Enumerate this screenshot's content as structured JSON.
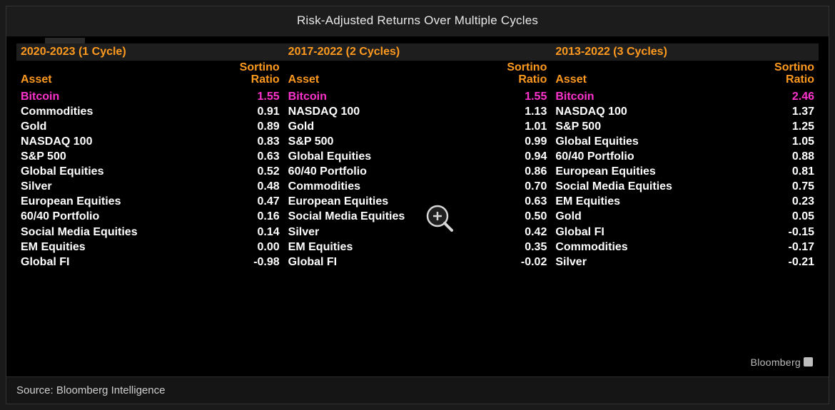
{
  "title": "Risk-Adjusted Returns Over Multiple Cycles",
  "source": "Source: Bloomberg Intelligence",
  "brand": "Bloomberg",
  "colors": {
    "accent_orange": "#ff9a1f",
    "highlight_magenta": "#ff33cc",
    "text_white": "#ffffff",
    "background": "#000000",
    "panel_header_bg": "#1e1e1e",
    "outer_bg": "#1a1a1a",
    "source_text": "#cfcfcf",
    "brand_gray": "#bdbdbd"
  },
  "typography": {
    "family": "Verdana",
    "title_fontsize": 17,
    "header_fontsize": 16,
    "row_fontsize": 16,
    "row_weight": 700
  },
  "column_headers": {
    "asset": "Asset",
    "ratio_line1": "Sortino",
    "ratio_line2": "Ratio"
  },
  "panels": [
    {
      "cycle_label": "2020-2023 (1 Cycle)",
      "rows": [
        {
          "asset": "Bitcoin",
          "ratio": "1.55",
          "highlight": true
        },
        {
          "asset": "Commodities",
          "ratio": "0.91"
        },
        {
          "asset": "Gold",
          "ratio": "0.89"
        },
        {
          "asset": "NASDAQ 100",
          "ratio": "0.83"
        },
        {
          "asset": "S&P 500",
          "ratio": "0.63"
        },
        {
          "asset": "Global Equities",
          "ratio": "0.52"
        },
        {
          "asset": "Silver",
          "ratio": "0.48"
        },
        {
          "asset": "European Equities",
          "ratio": "0.47"
        },
        {
          "asset": "60/40 Portfolio",
          "ratio": "0.16"
        },
        {
          "asset": "Social Media Equities",
          "ratio": "0.14"
        },
        {
          "asset": "EM Equities",
          "ratio": "0.00"
        },
        {
          "asset": "Global FI",
          "ratio": "-0.98"
        }
      ]
    },
    {
      "cycle_label": "2017-2022 (2 Cycles)",
      "rows": [
        {
          "asset": "Bitcoin",
          "ratio": "1.55",
          "highlight": true
        },
        {
          "asset": "NASDAQ 100",
          "ratio": "1.13"
        },
        {
          "asset": "Gold",
          "ratio": "1.01"
        },
        {
          "asset": "S&P 500",
          "ratio": "0.99"
        },
        {
          "asset": "Global Equities",
          "ratio": "0.94"
        },
        {
          "asset": "60/40 Portfolio",
          "ratio": "0.86"
        },
        {
          "asset": "Commodities",
          "ratio": "0.70"
        },
        {
          "asset": "European Equities",
          "ratio": "0.63"
        },
        {
          "asset": "Social Media Equities",
          "ratio": "0.50"
        },
        {
          "asset": "Silver",
          "ratio": "0.42"
        },
        {
          "asset": "EM Equities",
          "ratio": "0.35"
        },
        {
          "asset": "Global FI",
          "ratio": "-0.02"
        }
      ]
    },
    {
      "cycle_label": "2013-2022 (3 Cycles)",
      "rows": [
        {
          "asset": "Bitcoin",
          "ratio": "2.46",
          "highlight": true
        },
        {
          "asset": "NASDAQ 100",
          "ratio": "1.37"
        },
        {
          "asset": "S&P 500",
          "ratio": "1.25"
        },
        {
          "asset": "Global Equities",
          "ratio": "1.05"
        },
        {
          "asset": "60/40 Portfolio",
          "ratio": "0.88"
        },
        {
          "asset": "European Equities",
          "ratio": "0.81"
        },
        {
          "asset": "Social Media Equities",
          "ratio": "0.75"
        },
        {
          "asset": "EM Equities",
          "ratio": "0.23"
        },
        {
          "asset": "Gold",
          "ratio": "0.05"
        },
        {
          "asset": "Global FI",
          "ratio": "-0.15"
        },
        {
          "asset": "Commodities",
          "ratio": "-0.17"
        },
        {
          "asset": "Silver",
          "ratio": "-0.21"
        }
      ]
    }
  ]
}
